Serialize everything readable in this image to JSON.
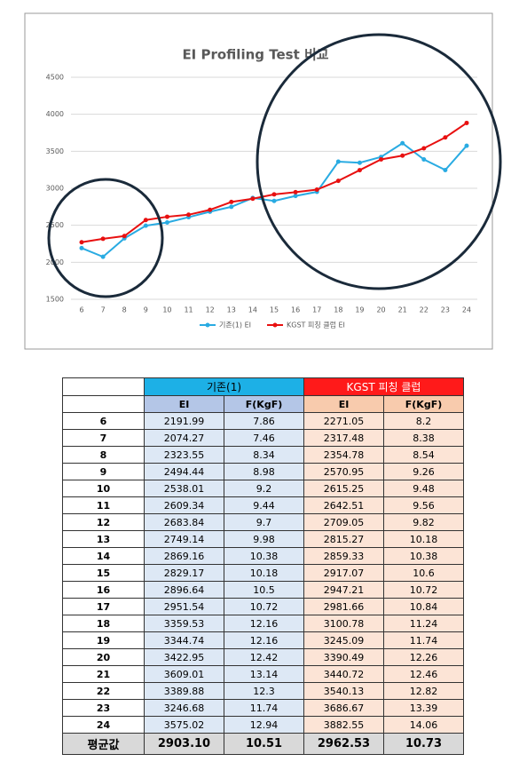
{
  "chart_data": {
    "type": "line",
    "title": "EI Profiling Test 비교",
    "categories": [
      "6",
      "7",
      "8",
      "9",
      "10",
      "11",
      "12",
      "13",
      "14",
      "15",
      "16",
      "17",
      "18",
      "19",
      "20",
      "21",
      "22",
      "23",
      "24"
    ],
    "ylim": [
      1500,
      4500
    ],
    "yticks": [
      1500,
      2000,
      2500,
      3000,
      3500,
      4000,
      4500
    ],
    "grid": true,
    "legend": "bottom",
    "series": [
      {
        "name": "기존(1) EI",
        "color": "#29abe2",
        "values": [
          2191.99,
          2074.27,
          2323.55,
          2494.44,
          2538.01,
          2609.34,
          2683.84,
          2749.14,
          2869.16,
          2829.17,
          2896.64,
          2951.54,
          3359.53,
          3344.74,
          3422.95,
          3609.01,
          3389.88,
          3246.68,
          3575.02
        ]
      },
      {
        "name": "KGST 피칭 클럽 EI",
        "color": "#e81010",
        "values": [
          2271.05,
          2317.48,
          2354.78,
          2570.95,
          2615.25,
          2642.51,
          2709.05,
          2815.27,
          2859.33,
          2917.07,
          2947.21,
          2981.66,
          3100.78,
          3245.09,
          3390.49,
          3440.72,
          3540.13,
          3686.67,
          3882.55
        ]
      }
    ]
  },
  "table": {
    "group_headers": [
      "기존(1)",
      "KGST 피칭 클럽"
    ],
    "sub_headers": [
      "EI",
      "F(KgF)",
      "EI",
      "F(KgF)"
    ],
    "rows": [
      [
        "6",
        "2191.99",
        "7.86",
        "2271.05",
        "8.2"
      ],
      [
        "7",
        "2074.27",
        "7.46",
        "2317.48",
        "8.38"
      ],
      [
        "8",
        "2323.55",
        "8.34",
        "2354.78",
        "8.54"
      ],
      [
        "9",
        "2494.44",
        "8.98",
        "2570.95",
        "9.26"
      ],
      [
        "10",
        "2538.01",
        "9.2",
        "2615.25",
        "9.48"
      ],
      [
        "11",
        "2609.34",
        "9.44",
        "2642.51",
        "9.56"
      ],
      [
        "12",
        "2683.84",
        "9.7",
        "2709.05",
        "9.82"
      ],
      [
        "13",
        "2749.14",
        "9.98",
        "2815.27",
        "10.18"
      ],
      [
        "14",
        "2869.16",
        "10.38",
        "2859.33",
        "10.38"
      ],
      [
        "15",
        "2829.17",
        "10.18",
        "2917.07",
        "10.6"
      ],
      [
        "16",
        "2896.64",
        "10.5",
        "2947.21",
        "10.72"
      ],
      [
        "17",
        "2951.54",
        "10.72",
        "2981.66",
        "10.84"
      ],
      [
        "18",
        "3359.53",
        "12.16",
        "3100.78",
        "11.24"
      ],
      [
        "19",
        "3344.74",
        "12.16",
        "3245.09",
        "11.74"
      ],
      [
        "20",
        "3422.95",
        "12.42",
        "3390.49",
        "12.26"
      ],
      [
        "21",
        "3609.01",
        "13.14",
        "3440.72",
        "12.46"
      ],
      [
        "22",
        "3389.88",
        "12.3",
        "3540.13",
        "12.82"
      ],
      [
        "23",
        "3246.68",
        "11.74",
        "3686.67",
        "13.39"
      ],
      [
        "24",
        "3575.02",
        "12.94",
        "3882.55",
        "14.06"
      ]
    ],
    "footer": [
      "평균값",
      "2903.10",
      "10.51",
      "2962.53",
      "10.73"
    ]
  }
}
